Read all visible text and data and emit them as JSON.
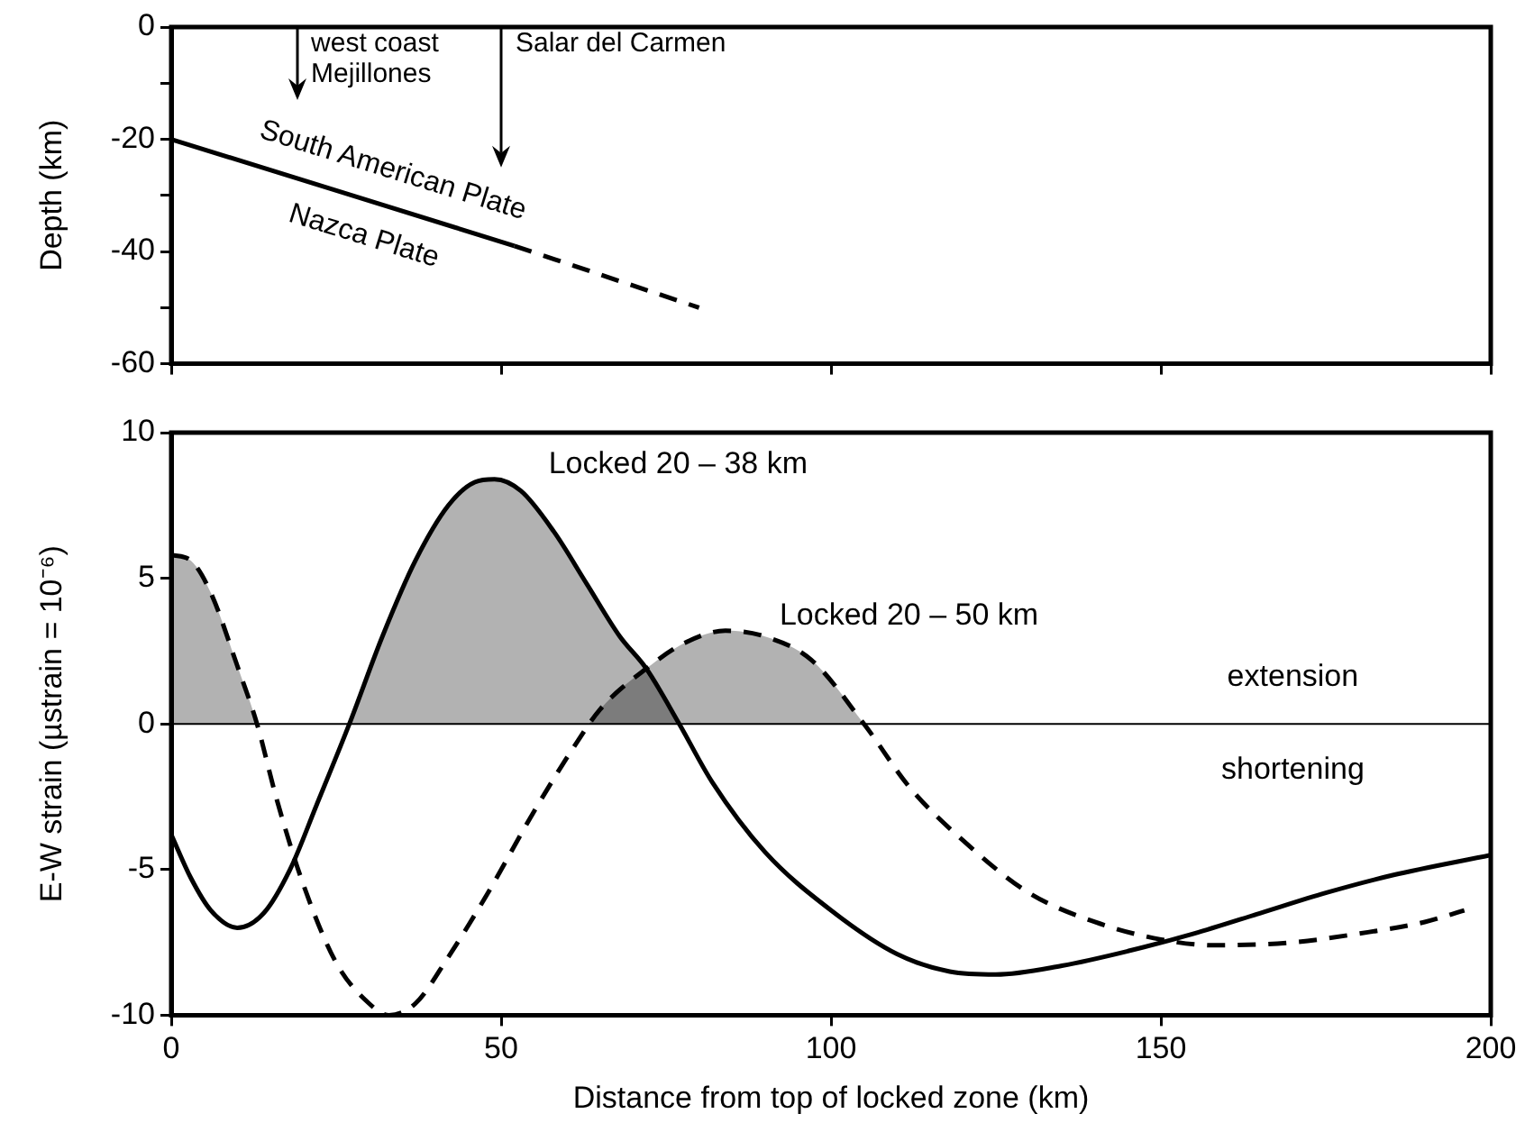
{
  "chart_data": [
    {
      "type": "line",
      "ylabel": "Depth (km)",
      "xlim": [
        0,
        200
      ],
      "xticks": [
        0,
        50,
        100,
        150,
        200
      ],
      "ylim": [
        -60,
        0
      ],
      "yticks": [
        {
          "value": -60,
          "label": "-60"
        },
        {
          "value": -50,
          "label": null
        },
        {
          "value": -40,
          "label": "-40"
        },
        {
          "value": -30,
          "label": null
        },
        {
          "value": -20,
          "label": "-20"
        },
        {
          "value": -10,
          "label": null
        },
        {
          "value": 0,
          "label": "0"
        }
      ],
      "tick_labels": "y",
      "legend": false,
      "marker": "none",
      "grid": false,
      "series": [
        {
          "color": "#000000",
          "line_style": "solid",
          "x": [
            0,
            52
          ],
          "values": [
            -20,
            -39
          ]
        },
        {
          "color": "#000000",
          "line_style": "dashed",
          "x": [
            52,
            80
          ],
          "values": [
            -39,
            -50
          ]
        }
      ],
      "annotations": [
        "west coast\nMejillones",
        "Salar del Carmen",
        "South American Plate",
        "Nazca Plate"
      ]
    },
    {
      "type": "area",
      "xlabel": "Distance from top of locked zone (km)",
      "ylabel": "E-W strain (µstrain = 10⁻⁶)",
      "xlim": [
        0,
        200
      ],
      "xticks": [
        0,
        50,
        100,
        150,
        200
      ],
      "ylim": [
        -10,
        10
      ],
      "yticks": [
        -10,
        -5,
        0,
        5,
        10
      ],
      "legend": false,
      "marker": "none",
      "grid": false,
      "series": [
        {
          "name": "Locked 20 – 38 km",
          "color": "#000000",
          "line_style": "solid",
          "x": [
            0,
            3,
            6,
            10,
            14,
            18,
            22,
            27,
            32,
            37,
            42,
            46,
            49,
            53,
            58,
            63,
            68,
            72,
            77,
            82,
            90,
            100,
            110,
            118,
            125,
            135,
            145,
            155,
            165,
            175,
            185,
            200
          ],
          "values": [
            -3.8,
            -5.3,
            -6.4,
            -7.0,
            -6.5,
            -5.0,
            -2.8,
            0,
            3.0,
            5.6,
            7.5,
            8.3,
            8.4,
            8.0,
            6.6,
            4.8,
            3.0,
            1.9,
            0,
            -2.0,
            -4.4,
            -6.4,
            -7.9,
            -8.5,
            -8.6,
            -8.3,
            -7.8,
            -7.2,
            -6.5,
            -5.8,
            -5.2,
            -4.5
          ]
        },
        {
          "name": "Locked 20 – 50 km",
          "color": "#000000",
          "line_style": "dashed",
          "x": [
            0,
            3,
            6,
            10,
            13,
            16,
            20,
            25,
            30,
            33,
            37,
            42,
            48,
            55,
            61,
            65,
            72,
            78,
            84,
            90,
            97,
            105,
            112,
            120,
            130,
            140,
            150,
            158,
            170,
            180,
            190,
            196
          ],
          "values": [
            5.8,
            5.6,
            4.5,
            2.0,
            0,
            -2.6,
            -5.5,
            -8.2,
            -9.6,
            -10,
            -9.6,
            -8.0,
            -5.8,
            -3.0,
            -0.8,
            0.5,
            1.9,
            2.8,
            3.2,
            3.0,
            2.2,
            0,
            -2.2,
            -4.0,
            -5.8,
            -6.8,
            -7.4,
            -7.6,
            -7.5,
            -7.2,
            -6.8,
            -6.4
          ]
        }
      ],
      "ref_lines": [
        {
          "axis": "y",
          "value": 0
        }
      ],
      "annotations": [
        "extension",
        "shortening"
      ]
    }
  ]
}
